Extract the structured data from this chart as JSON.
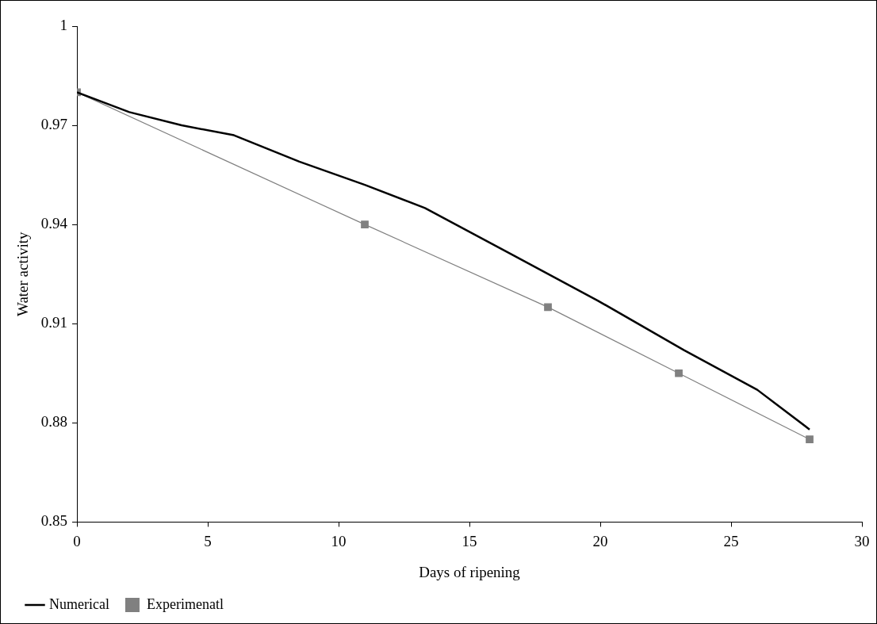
{
  "chart_data": {
    "type": "line",
    "xlabel": "Days of ripening",
    "ylabel": "Water activity",
    "xlim": [
      0,
      30
    ],
    "xticks": [
      0,
      5,
      10,
      15,
      20,
      25,
      30
    ],
    "ylim": [
      0.85,
      1
    ],
    "yticks": [
      0.85,
      0.88,
      0.91,
      0.94,
      0.97,
      1
    ],
    "grid": false,
    "legend": "bottom left",
    "series": [
      {
        "name": "Numerical",
        "color": "#000000",
        "marker": "none",
        "x": [
          0,
          2,
          4,
          6,
          8.5,
          11,
          13.3,
          16.6,
          19.9,
          23.2,
          26,
          28
        ],
        "values": [
          0.98,
          0.974,
          0.97,
          0.967,
          0.959,
          0.952,
          0.945,
          0.931,
          0.917,
          0.902,
          0.89,
          0.878
        ]
      },
      {
        "name": "Experimenatl",
        "color": "#808080",
        "marker": "square",
        "x": [
          0,
          11,
          18,
          23,
          28
        ],
        "values": [
          0.98,
          0.94,
          0.915,
          0.895,
          0.875
        ]
      }
    ]
  }
}
